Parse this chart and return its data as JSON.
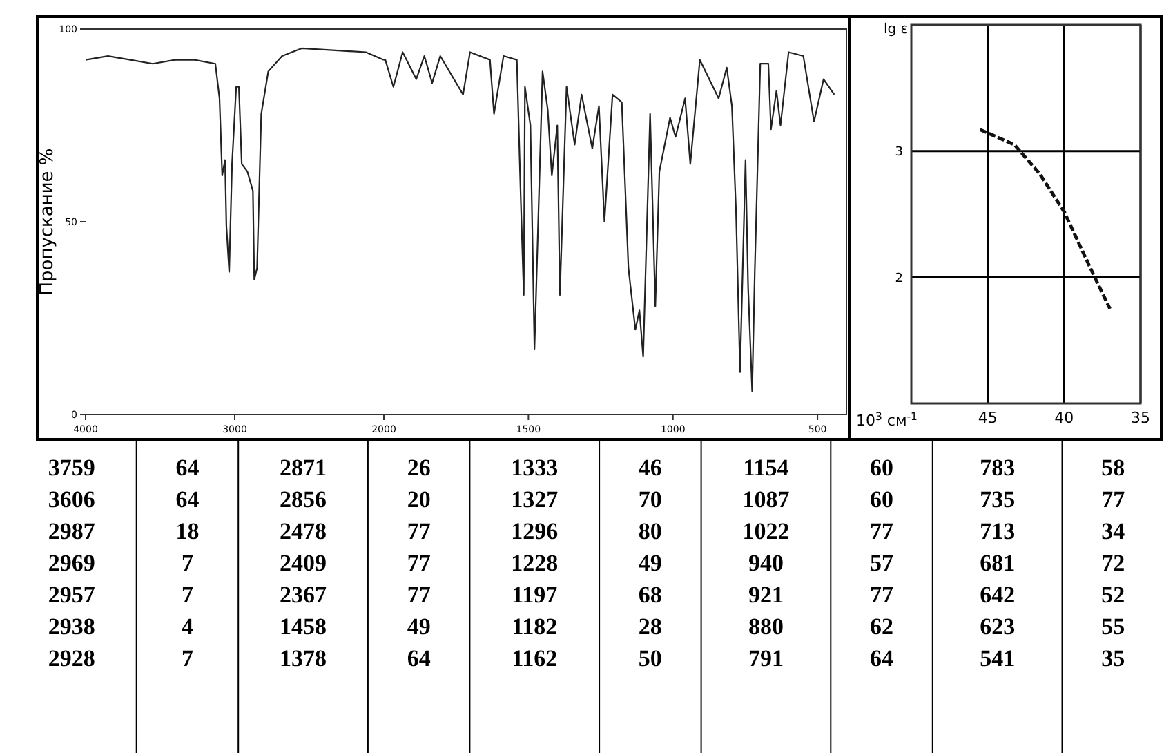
{
  "chart_data": [
    {
      "type": "line",
      "ylabel": "Пропускание %",
      "xlim": [
        4000,
        2000
      ],
      "ylim": [
        0,
        100
      ],
      "xticks": [
        4000,
        3000,
        2000
      ],
      "yticks": [
        0,
        50,
        100
      ],
      "grid": false,
      "marker": "none",
      "line_style": "solid",
      "series": [
        {
          "color": "#222222",
          "x": [
            4000,
            3850,
            3700,
            3550,
            3400,
            3271,
            3130,
            3102,
            3084,
            3065,
            3056,
            3037,
            3018,
            2990,
            2972,
            2953,
            2915,
            2878,
            2869,
            2850,
            2822,
            2775,
            2682,
            2551,
            2121,
            2000
          ],
          "values": [
            92,
            93,
            92,
            91,
            92,
            92,
            91,
            82,
            62,
            66,
            49,
            37,
            65,
            85,
            85,
            65,
            63,
            58,
            35,
            38,
            78,
            89,
            93,
            95,
            94,
            92
          ]
        }
      ]
    },
    {
      "type": "line",
      "xlim": [
        2000,
        400
      ],
      "ylim": [
        0,
        100
      ],
      "xticks": [
        1500,
        1000,
        500
      ],
      "yticks": [
        0,
        50,
        100
      ],
      "tick_labels": "x",
      "grid": false,
      "marker": "none",
      "line_style": "solid",
      "series": [
        {
          "color": "#222222",
          "x": [
            2000,
            1995,
            1967,
            1935,
            1888,
            1860,
            1833,
            1805,
            1726,
            1702,
            1633,
            1619,
            1586,
            1540,
            1526,
            1516,
            1512,
            1493,
            1479,
            1451,
            1433,
            1419,
            1400,
            1391,
            1368,
            1340,
            1316,
            1279,
            1256,
            1237,
            1209,
            1177,
            1154,
            1130,
            1116,
            1103,
            1079,
            1061,
            1047,
            1010,
            991,
            958,
            940,
            907,
            842,
            814,
            796,
            782,
            768,
            749,
            740,
            726,
            717,
            698,
            670,
            661,
            642,
            628,
            600,
            549,
            512,
            479,
            442
          ],
          "values": [
            92,
            92,
            85,
            94,
            87,
            93,
            86,
            93,
            83,
            94,
            92,
            78,
            93,
            92,
            55,
            31,
            85,
            75,
            17,
            89,
            79,
            62,
            75,
            31,
            85,
            70,
            83,
            69,
            80,
            50,
            83,
            81,
            38,
            22,
            27,
            15,
            78,
            28,
            63,
            77,
            72,
            82,
            65,
            92,
            82,
            90,
            80,
            53,
            11,
            66,
            33,
            6,
            37,
            91,
            91,
            74,
            84,
            75,
            94,
            93,
            76,
            87,
            83
          ]
        }
      ]
    },
    {
      "type": "line",
      "xlabel": "10$^{3}$ см$^{-1}$",
      "ylabel": "lg ε",
      "xlim": [
        50,
        35
      ],
      "ylim": [
        1,
        4
      ],
      "xticks": [
        45,
        40,
        35
      ],
      "yticks": [
        2,
        3
      ],
      "grid": true,
      "marker": "none",
      "line_style": "dashed",
      "series": [
        {
          "color": "#111111",
          "x": [
            45.5,
            43.25,
            41.6,
            40,
            38,
            37
          ],
          "values": [
            3.17,
            3.05,
            2.82,
            2.52,
            2.0,
            1.75
          ]
        }
      ]
    },
    {
      "type": "other",
      "data_labels": true,
      "categories": [
        "3759",
        "3606",
        "2987",
        "2969",
        "2957",
        "2938",
        "2928",
        "2871",
        "2856",
        "2478",
        "2409",
        "2367",
        "1458",
        "1378",
        "1333",
        "1327",
        "1296",
        "1228",
        "1197",
        "1182",
        "1162",
        "1154",
        "1087",
        "1022",
        "940",
        "921",
        "880",
        "791",
        "783",
        "735",
        "713",
        "681",
        "642",
        "623",
        "541"
      ],
      "values": [
        64,
        64,
        18,
        7,
        7,
        4,
        7,
        26,
        20,
        77,
        77,
        77,
        49,
        64,
        46,
        70,
        80,
        49,
        68,
        28,
        50,
        60,
        60,
        77,
        57,
        77,
        62,
        64,
        58,
        77,
        34,
        72,
        52,
        55,
        35
      ]
    }
  ]
}
